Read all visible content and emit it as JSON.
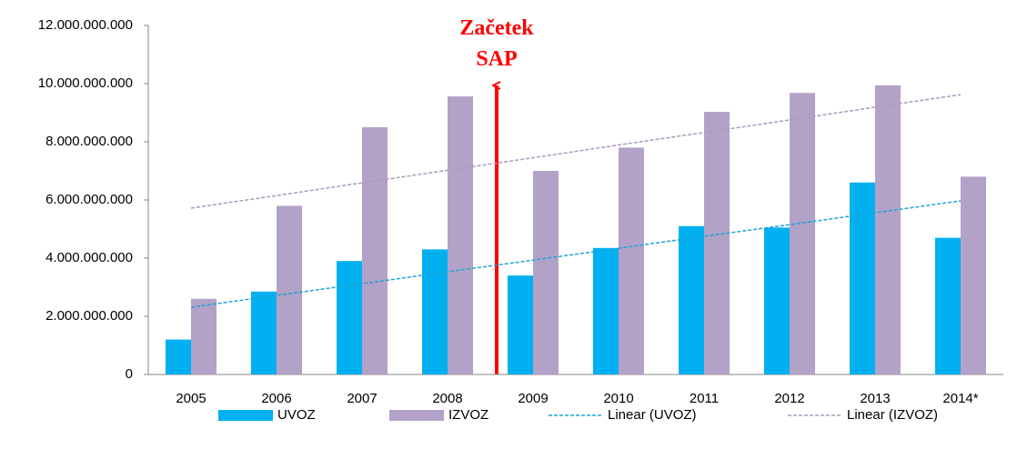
{
  "chart_data": {
    "type": "bar",
    "annotation": "Začetek SAP",
    "categories": [
      "2005",
      "2006",
      "2007",
      "2008",
      "2009",
      "2010",
      "2011",
      "2012",
      "2013",
      "2014*"
    ],
    "series": [
      {
        "name": "UVOZ",
        "color": "#00b0f0",
        "values": [
          1200000000,
          2850000000,
          3900000000,
          4300000000,
          3400000000,
          4350000000,
          5100000000,
          5050000000,
          6600000000,
          4700000000
        ]
      },
      {
        "name": "IZVOZ",
        "color": "#b3a2c7",
        "values": [
          2600000000,
          5800000000,
          8500000000,
          9560000000,
          7000000000,
          7800000000,
          9030000000,
          9680000000,
          9940000000,
          6800000000
        ]
      },
      {
        "name": "Linear (UVOZ)",
        "type": "trendline",
        "color": "#1fa4d6",
        "values": [
          2310000000,
          2720000000,
          3120000000,
          3530000000,
          3930000000,
          4340000000,
          4750000000,
          5150000000,
          5560000000,
          5970000000
        ]
      },
      {
        "name": "Linear (IZVOZ)",
        "type": "trendline",
        "color": "#a99bbd",
        "values": [
          5720000000,
          6150000000,
          6590000000,
          7020000000,
          7450000000,
          7890000000,
          8320000000,
          8750000000,
          9190000000,
          9620000000
        ]
      }
    ],
    "ylim": [
      0,
      12000000000
    ],
    "yticks": [
      0,
      {
        "value": 2000000000,
        "label": "2.000.000.000"
      },
      {
        "value": 4000000000,
        "label": "4.000.000.000"
      },
      {
        "value": 6000000000,
        "label": "6.000.000.000"
      },
      {
        "value": 8000000000,
        "label": "8.000.000.000"
      },
      {
        "value": 10000000000,
        "label": "10.000.000.000"
      },
      {
        "value": 12000000000,
        "label": "12.000.000.000"
      }
    ],
    "grid": false,
    "legend": "bottom"
  }
}
